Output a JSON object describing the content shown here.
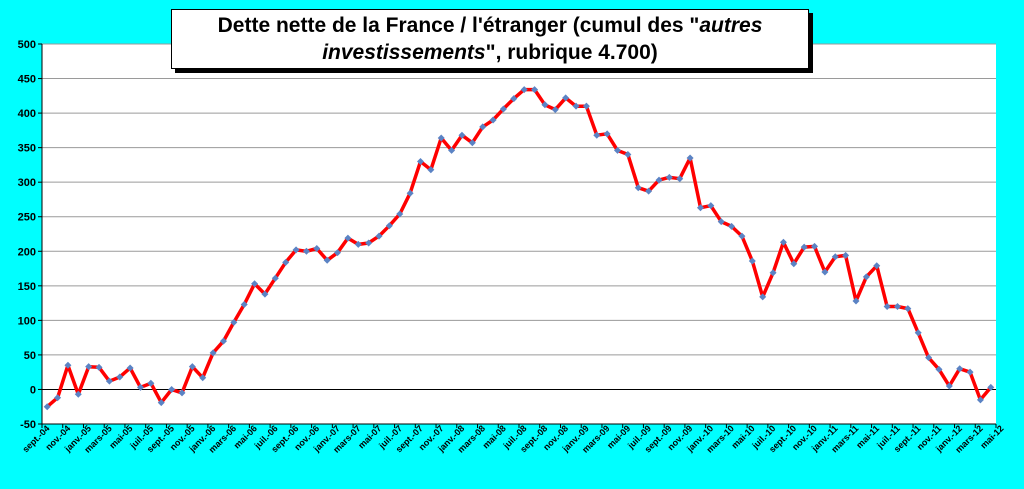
{
  "chart_data": {
    "type": "line",
    "title_parts": [
      "Dette nette de la France / l'étranger (cumul des \"",
      "autres investissements",
      "\", rubrique 4.700)"
    ],
    "xlabel": "",
    "ylabel": "",
    "ylim": [
      -50,
      500
    ],
    "yticks": [
      -50,
      0,
      50,
      100,
      150,
      200,
      250,
      300,
      350,
      400,
      450,
      500
    ],
    "grid": true,
    "legend": "none",
    "tick_labels": [
      "sept.-04",
      "nov.-04",
      "janv.-05",
      "mars-05",
      "mai-05",
      "juil.-05",
      "sept.-05",
      "nov.-05",
      "janv.-06",
      "mars-06",
      "mai-06",
      "juil.-06",
      "sept.-06",
      "nov.-06",
      "janv.-07",
      "mars-07",
      "mai-07",
      "juil.-07",
      "sept.-07",
      "nov.-07",
      "janv.-08",
      "mars-08",
      "mai-08",
      "juil.-08",
      "sept.-08",
      "nov.-08",
      "janv.-09",
      "mars-09",
      "mai-09",
      "juil.-09",
      "sept.-09",
      "nov.-09",
      "janv.-10",
      "mars-10",
      "mai-10",
      "juil.-10",
      "sept.-10",
      "nov.-10",
      "janv.-11",
      "mars-11",
      "mai-11",
      "juil.-11",
      "sept.-11",
      "nov.-11",
      "janv.-12",
      "mars-12",
      "mai-12"
    ],
    "series": [
      {
        "values": [
          -25,
          -12,
          35,
          -7,
          33,
          32,
          12,
          18,
          31,
          3,
          9,
          -19,
          0,
          -5,
          33,
          17,
          53,
          70,
          97,
          123,
          153,
          138,
          161,
          184,
          202,
          200,
          204,
          187,
          198,
          219,
          210,
          212,
          222,
          237,
          254,
          284,
          330,
          318,
          364,
          346,
          368,
          357,
          380,
          390,
          406,
          421,
          434,
          434,
          412,
          405,
          422,
          410,
          410,
          368,
          370,
          346,
          340,
          292,
          287,
          303,
          307,
          305,
          335,
          263,
          266,
          243,
          236,
          222,
          186,
          134,
          169,
          213,
          182,
          206,
          207,
          170,
          192,
          194,
          128,
          163,
          179,
          120,
          120,
          117,
          82,
          46,
          29,
          5,
          30,
          25,
          -15,
          3
        ],
        "color": "#FF0000",
        "marker_color": "#5B83C4"
      }
    ]
  }
}
